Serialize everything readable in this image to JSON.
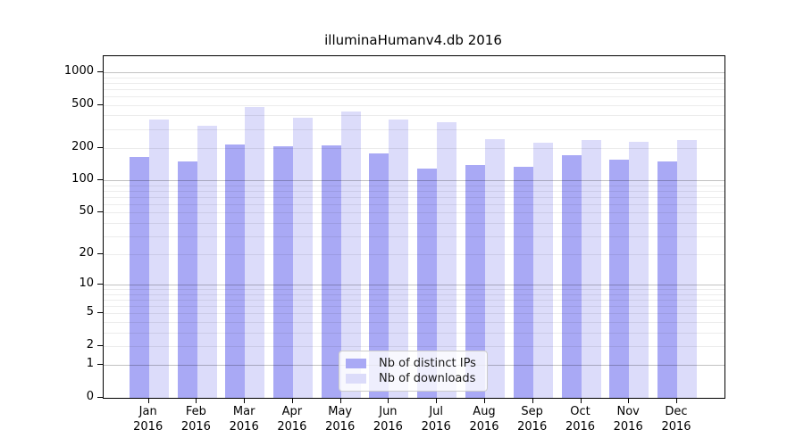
{
  "title": "illuminaHumanv4.db 2016",
  "chart_data": {
    "type": "bar",
    "title": "illuminaHumanv4.db 2016",
    "categories": [
      "Jan",
      "Feb",
      "Mar",
      "Apr",
      "May",
      "Jun",
      "Jul",
      "Aug",
      "Sep",
      "Oct",
      "Nov",
      "Dec"
    ],
    "x_year_sublabel": "2016",
    "series": [
      {
        "name": "Nb of distinct IPs",
        "color": "#a9a9f5",
        "values": [
          165,
          150,
          215,
          207,
          212,
          178,
          130,
          138,
          135,
          172,
          155,
          150
        ]
      },
      {
        "name": "Nb of downloads",
        "color": "#dcdcfa",
        "values": [
          368,
          320,
          475,
          380,
          435,
          368,
          345,
          240,
          225,
          236,
          230,
          236
        ]
      }
    ],
    "yscale": "log1p",
    "ylim": [
      0,
      1410
    ],
    "yticks": [
      0,
      1,
      2,
      5,
      10,
      20,
      50,
      100,
      200,
      500,
      1000
    ],
    "grid": {
      "major_lines": [
        1,
        10,
        100,
        1000
      ],
      "minor_lines": "2-9, 20-90, 200-900",
      "orientation": "horizontal",
      "drawn_over_bars": true
    },
    "legend": {
      "position": "inside-bottom-center"
    }
  },
  "colors": {
    "bar_distinct_ips": "#a9a9f5",
    "bar_downloads": "#dcdcfa",
    "grid_major": "#c3c3c3",
    "grid_minor": "#ebebeb",
    "spine": "#000000",
    "background": "#ffffff",
    "text": "#000000"
  }
}
